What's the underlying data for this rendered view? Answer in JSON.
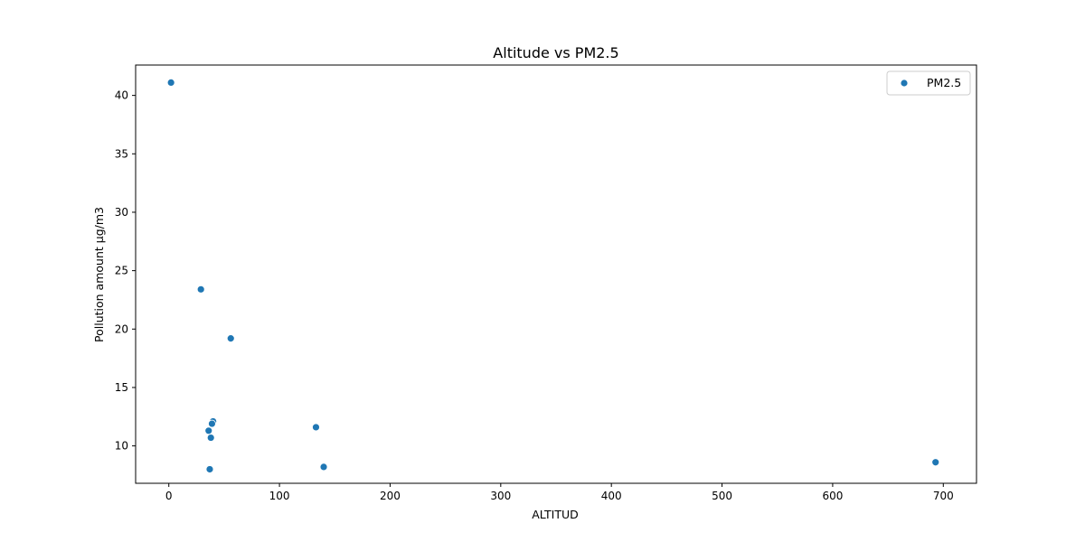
{
  "chart_data": {
    "type": "scatter",
    "title": "Altitude vs PM2.5",
    "xlabel": "ALTITUD",
    "ylabel": "Pollution amount µg/m3",
    "xlim": [
      -30,
      730
    ],
    "ylim": [
      6.8,
      42.6
    ],
    "xticks": [
      0,
      100,
      200,
      300,
      400,
      500,
      600,
      700
    ],
    "yticks": [
      10,
      15,
      20,
      25,
      30,
      35,
      40
    ],
    "grid": false,
    "legend_position": "top-right",
    "series": [
      {
        "name": "PM2.5",
        "color": "#1f77b4",
        "points": [
          {
            "x": 2,
            "y": 41.1
          },
          {
            "x": 29,
            "y": 23.4
          },
          {
            "x": 56,
            "y": 19.2
          },
          {
            "x": 40,
            "y": 12.1
          },
          {
            "x": 39,
            "y": 11.9
          },
          {
            "x": 36,
            "y": 11.3
          },
          {
            "x": 38,
            "y": 10.7
          },
          {
            "x": 37,
            "y": 8.0
          },
          {
            "x": 133,
            "y": 11.6
          },
          {
            "x": 140,
            "y": 8.2
          },
          {
            "x": 693,
            "y": 8.6
          }
        ]
      }
    ]
  }
}
